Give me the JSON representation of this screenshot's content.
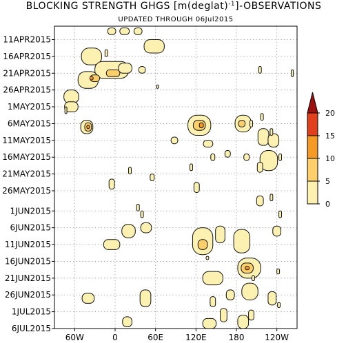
{
  "chart_data": {
    "type": "heatmap",
    "title": "BLOCKING STRENGTH GHGS [m(deglat)",
    "title_sup": "-1",
    "title_tail": "]-OBSERVATIONS",
    "subtitle": "UPDATED THROUGH 06Jul2015",
    "x_ticks": [
      {
        "label": "60W",
        "lon": -60
      },
      {
        "label": "0",
        "lon": 0
      },
      {
        "label": "60E",
        "lon": 60
      },
      {
        "label": "120E",
        "lon": 120
      },
      {
        "label": "180",
        "lon": 180
      },
      {
        "label": "120W",
        "lon": 240
      }
    ],
    "xlim": [
      -90,
      270
    ],
    "y_ticks": [
      {
        "label": "11APR2015",
        "day": 1
      },
      {
        "label": "16APR2015",
        "day": 6
      },
      {
        "label": "21APR2015",
        "day": 11
      },
      {
        "label": "26APR2015",
        "day": 16
      },
      {
        "label": "1MAY2015",
        "day": 21
      },
      {
        "label": "6MAY2015",
        "day": 26
      },
      {
        "label": "11MAY2015",
        "day": 31
      },
      {
        "label": "16MAY2015",
        "day": 36
      },
      {
        "label": "21MAY2015",
        "day": 41
      },
      {
        "label": "26MAY2015",
        "day": 46
      },
      {
        "label": "1JUN2015",
        "day": 52
      },
      {
        "label": "6JUN2015",
        "day": 57
      },
      {
        "label": "11JUN2015",
        "day": 62
      },
      {
        "label": "16JUN2015",
        "day": 67
      },
      {
        "label": "21JUN2015",
        "day": 72
      },
      {
        "label": "26JUN2015",
        "day": 77
      },
      {
        "label": "1JUL2015",
        "day": 82
      },
      {
        "label": "6JUL2015",
        "day": 87
      }
    ],
    "ylim": [
      -3,
      87
    ],
    "grid": true,
    "colorbar": {
      "position": "right",
      "levels": [
        "0",
        "5",
        "10",
        "15",
        "20"
      ],
      "colors": [
        "#fdf1b2",
        "#fccf6b",
        "#f59a27",
        "#e0401b",
        "#a00f0f"
      ]
    },
    "values": [
      {
        "lon": -5,
        "day": -1.5,
        "w": 12,
        "h": 2,
        "level": 1
      },
      {
        "lon": 14,
        "day": -1.5,
        "w": 14,
        "h": 2,
        "level": 1
      },
      {
        "lon": 34,
        "day": -1.5,
        "w": 12,
        "h": 2,
        "level": 1
      },
      {
        "lon": 58,
        "day": 3,
        "w": 30,
        "h": 4,
        "level": 1
      },
      {
        "lon": -35,
        "day": 6,
        "w": 30,
        "h": 5,
        "level": 1
      },
      {
        "lon": -13,
        "day": 5,
        "w": 4,
        "h": 2,
        "level": 1
      },
      {
        "lon": -5,
        "day": 10,
        "w": 50,
        "h": 5,
        "level": 1
      },
      {
        "lon": -3,
        "day": 11,
        "w": 20,
        "h": 2,
        "level": 2
      },
      {
        "lon": 15,
        "day": 9.5,
        "w": 20,
        "h": 3,
        "level": 1
      },
      {
        "lon": 40,
        "day": 10,
        "w": 10,
        "h": 2,
        "level": 1
      },
      {
        "lon": -40,
        "day": 13,
        "w": 30,
        "h": 5,
        "level": 1
      },
      {
        "lon": -30,
        "day": 12.5,
        "w": 14,
        "h": 2,
        "level": 2
      },
      {
        "lon": -35,
        "day": 12.5,
        "w": 5,
        "h": 1,
        "level": 3
      },
      {
        "lon": -65,
        "day": 18,
        "w": 22,
        "h": 4,
        "level": 1
      },
      {
        "lon": -65,
        "day": 21,
        "w": 20,
        "h": 3,
        "level": 1
      },
      {
        "lon": -73,
        "day": 22,
        "w": 3,
        "h": 2,
        "level": 1
      },
      {
        "lon": -42,
        "day": 27,
        "w": 18,
        "h": 4,
        "level": 1
      },
      {
        "lon": -40,
        "day": 27,
        "w": 10,
        "h": 2.5,
        "level": 2
      },
      {
        "lon": -40,
        "day": 27,
        "w": 4,
        "h": 1,
        "level": 3
      },
      {
        "lon": 125,
        "day": 26.5,
        "w": 34,
        "h": 6,
        "level": 1
      },
      {
        "lon": 125,
        "day": 26.5,
        "w": 18,
        "h": 3,
        "level": 2
      },
      {
        "lon": 128,
        "day": 26.5,
        "w": 6,
        "h": 1.5,
        "level": 3
      },
      {
        "lon": 190,
        "day": 26,
        "w": 24,
        "h": 5,
        "level": 1
      },
      {
        "lon": 188,
        "day": 26,
        "w": 10,
        "h": 2,
        "level": 2
      },
      {
        "lon": 138,
        "day": 32,
        "w": 14,
        "h": 2,
        "level": 1
      },
      {
        "lon": 88,
        "day": 31,
        "w": 10,
        "h": 2,
        "level": 1
      },
      {
        "lon": 220,
        "day": 30,
        "w": 16,
        "h": 5,
        "level": 1
      },
      {
        "lon": 235,
        "day": 31,
        "w": 16,
        "h": 4,
        "level": 1
      },
      {
        "lon": 228,
        "day": 37,
        "w": 26,
        "h": 6,
        "level": 1
      },
      {
        "lon": 215,
        "day": 39,
        "w": 8,
        "h": 3,
        "level": 1
      },
      {
        "lon": 195,
        "day": 36,
        "w": 8,
        "h": 2,
        "level": 1
      },
      {
        "lon": 167,
        "day": 35,
        "w": 8,
        "h": 2,
        "level": 1
      },
      {
        "lon": 145,
        "day": 36,
        "w": 6,
        "h": 2,
        "level": 1
      },
      {
        "lon": 202,
        "day": 26,
        "w": 4,
        "h": 2,
        "level": 1
      },
      {
        "lon": 218,
        "day": 24,
        "w": 4,
        "h": 2,
        "level": 1
      },
      {
        "lon": 232,
        "day": 28.5,
        "w": 4,
        "h": 2,
        "level": 1
      },
      {
        "lon": 245,
        "day": 36,
        "w": 4,
        "h": 2,
        "level": 1
      },
      {
        "lon": 22,
        "day": 40,
        "w": 4,
        "h": 2,
        "level": 1
      },
      {
        "lon": 113,
        "day": 39,
        "w": 4,
        "h": 2,
        "level": 1
      },
      {
        "lon": 55,
        "day": 42,
        "w": 6,
        "h": 2,
        "level": 1
      },
      {
        "lon": -5,
        "day": 44,
        "w": 8,
        "h": 3,
        "level": 1
      },
      {
        "lon": 121,
        "day": 45,
        "w": 8,
        "h": 3,
        "level": 1
      },
      {
        "lon": 215,
        "day": 49,
        "w": 10,
        "h": 3,
        "level": 1
      },
      {
        "lon": 232,
        "day": 48,
        "w": 4,
        "h": 2,
        "level": 1
      },
      {
        "lon": 34,
        "day": 51,
        "w": 4,
        "h": 2,
        "level": 1
      },
      {
        "lon": 40,
        "day": 53,
        "w": 4,
        "h": 2,
        "level": 1
      },
      {
        "lon": 46,
        "day": 57,
        "w": 16,
        "h": 3,
        "level": 1
      },
      {
        "lon": 20,
        "day": 58,
        "w": 20,
        "h": 4,
        "level": 1
      },
      {
        "lon": 130,
        "day": 61,
        "w": 30,
        "h": 8,
        "level": 1
      },
      {
        "lon": 130,
        "day": 62,
        "w": 14,
        "h": 3,
        "level": 2
      },
      {
        "lon": 156,
        "day": 59,
        "w": 14,
        "h": 5,
        "level": 1
      },
      {
        "lon": 188,
        "day": 61,
        "w": 24,
        "h": 7,
        "level": 1
      },
      {
        "lon": 240,
        "day": 58,
        "w": 12,
        "h": 3,
        "level": 1
      },
      {
        "lon": 245,
        "day": 53,
        "w": 4,
        "h": 2,
        "level": 1
      },
      {
        "lon": -5,
        "day": 62,
        "w": 24,
        "h": 3,
        "level": 1
      },
      {
        "lon": 137,
        "day": 66,
        "w": 4,
        "h": 1,
        "level": 1
      },
      {
        "lon": 199,
        "day": 69,
        "w": 34,
        "h": 6,
        "level": 1
      },
      {
        "lon": 196,
        "day": 69,
        "w": 18,
        "h": 3,
        "level": 2
      },
      {
        "lon": 196,
        "day": 69,
        "w": 6,
        "h": 1,
        "level": 3
      },
      {
        "lon": 200,
        "day": 76,
        "w": 24,
        "h": 5,
        "level": 1
      },
      {
        "lon": 145,
        "day": 72,
        "w": 30,
        "h": 4,
        "level": 1
      },
      {
        "lon": 171,
        "day": 77,
        "w": 12,
        "h": 3,
        "level": 1
      },
      {
        "lon": 233,
        "day": 78,
        "w": 12,
        "h": 4,
        "level": 1
      },
      {
        "lon": 145,
        "day": 79,
        "w": 8,
        "h": 3,
        "level": 1
      },
      {
        "lon": 161,
        "day": 83,
        "w": 10,
        "h": 4,
        "level": 1
      },
      {
        "lon": 202,
        "day": 83,
        "w": 8,
        "h": 3,
        "level": 1
      },
      {
        "lon": -40,
        "day": 78,
        "w": 18,
        "h": 3,
        "level": 1
      },
      {
        "lon": 45,
        "day": 78,
        "w": 16,
        "h": 5,
        "level": 1
      },
      {
        "lon": 205,
        "day": 72,
        "w": 4,
        "h": 1.5,
        "level": 1
      },
      {
        "lon": 243,
        "day": 80,
        "w": 4,
        "h": 1.5,
        "level": 1
      },
      {
        "lon": 18,
        "day": 85,
        "w": 14,
        "h": 3,
        "level": 1
      },
      {
        "lon": 140,
        "day": 85.5,
        "w": 20,
        "h": 3,
        "level": 1
      },
      {
        "lon": 190,
        "day": 85,
        "w": 16,
        "h": 4,
        "level": 1
      },
      {
        "lon": 242,
        "day": 70,
        "w": 4,
        "h": 1.5,
        "level": 1
      },
      {
        "lon": 63,
        "day": 15,
        "w": 3,
        "h": 1,
        "level": 1
      },
      {
        "lon": 263,
        "day": 11,
        "w": 3,
        "h": 2,
        "level": 1
      },
      {
        "lon": 215,
        "day": 10,
        "w": 4,
        "h": 2,
        "level": 1
      }
    ]
  }
}
